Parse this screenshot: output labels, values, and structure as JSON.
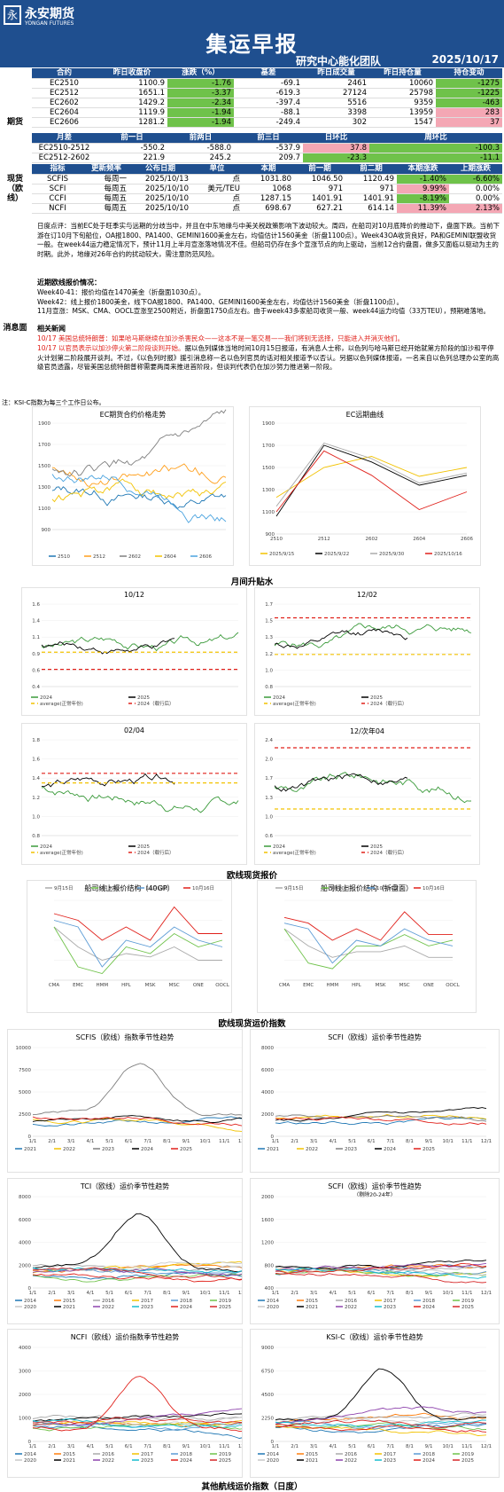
{
  "header": {
    "logo_cn": "永安期货",
    "logo_en": "YONGAN FUTURES",
    "title": "集运早报",
    "team": "研究中心能化团队",
    "date": "2025/10/17"
  },
  "futures": {
    "side_label": "期货",
    "headers": [
      "合约",
      "昨日收盘价",
      "涨跌（%）",
      "基差",
      "昨日成交量",
      "昨日持仓量",
      "持仓变动"
    ],
    "rows": [
      [
        "EC2510",
        "1100.9",
        "-1.76",
        "-69.1",
        "2461",
        "10060",
        "-1275"
      ],
      [
        "EC2512",
        "1651.1",
        "-3.37",
        "-619.3",
        "27124",
        "25798",
        "-1225"
      ],
      [
        "EC2602",
        "1429.2",
        "-2.34",
        "-397.4",
        "5516",
        "9359",
        "-463"
      ],
      [
        "EC2604",
        "1119.9",
        "-1.94",
        "-88.1",
        "3398",
        "13959",
        "283"
      ],
      [
        "EC2606",
        "1281.2",
        "-1.94",
        "-249.4",
        "302",
        "1547",
        "37"
      ]
    ],
    "spread_headers": [
      "月差",
      "前一日",
      "前两日",
      "前三日",
      "日环比",
      "周环比"
    ],
    "spread_rows": [
      [
        "EC2510-2512",
        "-550.2",
        "-588.0",
        "-537.9",
        "37.8",
        "-100.3"
      ],
      [
        "EC2512-2602",
        "221.9",
        "245.2",
        "209.7",
        "-23.3",
        "-11.1"
      ]
    ]
  },
  "spot": {
    "side_label": "现货（欧线）",
    "headers": [
      "指标",
      "更新频率",
      "公布日期",
      "单位",
      "本期",
      "前一期",
      "前二期",
      "本期涨跌",
      "上期涨跌"
    ],
    "rows": [
      [
        "SCFIS",
        "每周一",
        "2025/10/13",
        "点",
        "1031.80",
        "1046.50",
        "1120.49",
        "-1.40%",
        "-6.60%"
      ],
      [
        "SCFI",
        "每周五",
        "2025/10/10",
        "美元/TEU",
        "1068",
        "971",
        "971",
        "9.99%",
        "0.00%"
      ],
      [
        "CCFI",
        "每周五",
        "2025/10/10",
        "点",
        "1287.15",
        "1401.91",
        "1401.91",
        "-8.19%",
        "0.00%"
      ],
      [
        "NCFI",
        "每周五",
        "2025/10/10",
        "点",
        "698.67",
        "627.21",
        "614.14",
        "11.39%",
        "2.13%"
      ]
    ]
  },
  "news": {
    "side_label": "消息面",
    "para1": "日度点评：当前EC处于旺季实与远期的分歧当中，并且在中东地缘与中美关税政策影响下波动较大。周四，在船司对10月底降价的推动下，盘面下跌。当前下游在订10月下旬船位，OA报1800、PA1400、GEMINI1600美金左右，均值估计1560美金（折盘1100点）。Week43OA收货良好，PA和GEMINI联盟收货一般。在week44运力稳定情况下，预计11月上半月宣涨落地情况不佳。但船司仍存在多个宣涨节点的向上驱动，当前12合约盘面，做多又面临以驱动为主的时期。此外，地缘对26年合约的扰动较大，需注意防范风险。",
    "sub1": "近期欧线报价情况：",
    "lines1": [
      "Week40-41：报价均值在1470美金（折盘面1030点）。",
      "Week42：线上报价1800美金，线下OA报1800、PA1400、GEMINI1600美金左右，均值估计1560美金（折盘1100点）。",
      "11月宣涨：MSK、CMA、OOCL宣涨至2500附近，折盘面1750点左右。由于week43多家船司收货一般、week44运力均值（33万TEU），预期难落地。"
    ],
    "sub2": "相关新闻",
    "red1": "10/17 美国总统特朗普：如果哈马斯继续在加沙杀害民众——这本不是一笔交易——我们将别无选择，只能进入并消灭他们。",
    "red2": "10/17 以官员表示以加沙停火第二阶段谈判开始。",
    "rest2": "据以色列媒体当地时间10月15日报道，有消息人士称，以色列与哈马斯已经开始就第方阶段的加沙和平停火计划第二阶段展开谈判。不过，《以色列时报》援引消息称一名以色列官员的话对相关报道予以否认。另据以色列媒体报道，一名来自以色列总理办公室的高级官员透露，尽管美国总统特朗普称需要两周来推进首阶段，但谈判代表仍在加沙努力推进第一阶段。",
    "note": "注：KSI-C指数为每三个工作日公布。"
  },
  "sections": {
    "ec": "月间升贴水",
    "spot": "欧线现货报价",
    "idx": "欧线现货运价指数",
    "other": "其他航线运价指数（日度）"
  },
  "titles": {
    "ec_trend": "EC期货合约价格走势",
    "ec_curve": "EC远期曲线",
    "p1": "10/12",
    "p2": "12/02",
    "p3": "02/04",
    "p4": "12/次年04",
    "quote40": "船司线上报价结构（40GP）",
    "quotebox": "船司线上报价结构（折盘面）",
    "scfis": "SCFIS（欧线）指数季节性趋势",
    "scfi": "SCFI（欧线）运价季节性趋势",
    "tci": "TCI（欧线）运价季节性趋势",
    "scfi2": "SCFI（欧线）运价季节性趋势",
    "scfi2sub": "（剔除20-24年）",
    "ncfi": "NCFI（欧线）运价指数季节性趋势",
    "ksi": "KSI-C（欧线）运价季节性趋势"
  },
  "carriers": [
    "CMA",
    "EMC",
    "HMM",
    "HPL",
    "MSK",
    "MSC",
    "ONE",
    "OOCL"
  ],
  "legends": {
    "ec_trend": [
      "2510",
      "2512",
      "2602",
      "2604",
      "2606"
    ],
    "ec_curve": [
      "2025/9/15",
      "2025/9/22",
      "2025/9/30",
      "2025/10/16"
    ],
    "quote": [
      "9月15日",
      "9月30日",
      "10月10日",
      "10月16日"
    ],
    "spread": [
      "2024",
      "2025",
      "average(正常年份)",
      "2024（载行后）"
    ],
    "seasonal": [
      "2021",
      "2022",
      "2023",
      "2024",
      "2025"
    ],
    "seasonal_long": [
      "2014",
      "2015",
      "2016",
      "2017",
      "2018",
      "2019",
      "2020",
      "2021",
      "2022",
      "2023",
      "2024",
      "2025"
    ]
  },
  "axes": {
    "months": [
      "1/1",
      "2/1",
      "3/1",
      "4/1",
      "5/1",
      "6/1",
      "7/1",
      "8/1",
      "9/1",
      "10/1",
      "11/1",
      "12/1"
    ],
    "curve_x": [
      "2510",
      "2512",
      "2602",
      "2604",
      "2606"
    ],
    "usd_teu": "美元/TEU",
    "points": "点"
  },
  "colors": {
    "brand": "#1f4f8f",
    "up": "#6fc24a",
    "down": "#f4a7b4",
    "red": "#e0201a"
  },
  "chart_data": [
    {
      "type": "line",
      "title": "EC远期曲线",
      "categories": [
        "2510",
        "2512",
        "2602",
        "2604",
        "2606"
      ],
      "series": [
        {
          "name": "2025/9/15",
          "values": [
            1230,
            1500,
            1600,
            1420,
            1500
          ]
        },
        {
          "name": "2025/9/22",
          "values": [
            1060,
            1700,
            1550,
            1340,
            1430
          ]
        },
        {
          "name": "2025/9/30",
          "values": [
            1150,
            1720,
            1580,
            1360,
            1450
          ]
        },
        {
          "name": "2025/10/16",
          "values": [
            1100,
            1650,
            1430,
            1120,
            1280
          ]
        }
      ]
    },
    {
      "type": "line",
      "title": "船司线上报价结构（40GP）",
      "categories": [
        "CMA",
        "EMC",
        "HMM",
        "HPL",
        "MSK",
        "MSC",
        "ONE",
        "OOCL"
      ],
      "series": [
        {
          "name": "9月15日",
          "values": [
            2200,
            1900,
            1700,
            1800,
            1750,
            1900,
            1700,
            1700
          ]
        },
        {
          "name": "9月30日",
          "values": [
            2200,
            1600,
            1500,
            1900,
            1800,
            2100,
            1900,
            2000
          ]
        },
        {
          "name": "10月10日",
          "values": [
            2300,
            2200,
            1600,
            2000,
            1900,
            2200,
            2000,
            1900
          ]
        },
        {
          "name": "10月16日",
          "values": [
            2400,
            2300,
            2000,
            2200,
            2000,
            2500,
            2100,
            2100
          ]
        }
      ]
    },
    {
      "type": "line",
      "title": "船司线上报价结构（折盘面）",
      "categories": [
        "CMA",
        "EMC",
        "HMM",
        "HPL",
        "MSK",
        "MSC",
        "ONE",
        "OOCL"
      ],
      "series": [
        {
          "name": "9月15日",
          "values": [
            1450,
            1300,
            1200,
            1250,
            1250,
            1300,
            1200,
            1200
          ]
        },
        {
          "name": "9月30日",
          "values": [
            1450,
            1150,
            1100,
            1300,
            1300,
            1400,
            1300,
            1350
          ]
        },
        {
          "name": "10月10日",
          "values": [
            1500,
            1450,
            1150,
            1350,
            1300,
            1450,
            1350,
            1300
          ]
        },
        {
          "name": "10月16日",
          "values": [
            1550,
            1500,
            1350,
            1450,
            1350,
            1600,
            1400,
            1400
          ]
        }
      ]
    }
  ]
}
